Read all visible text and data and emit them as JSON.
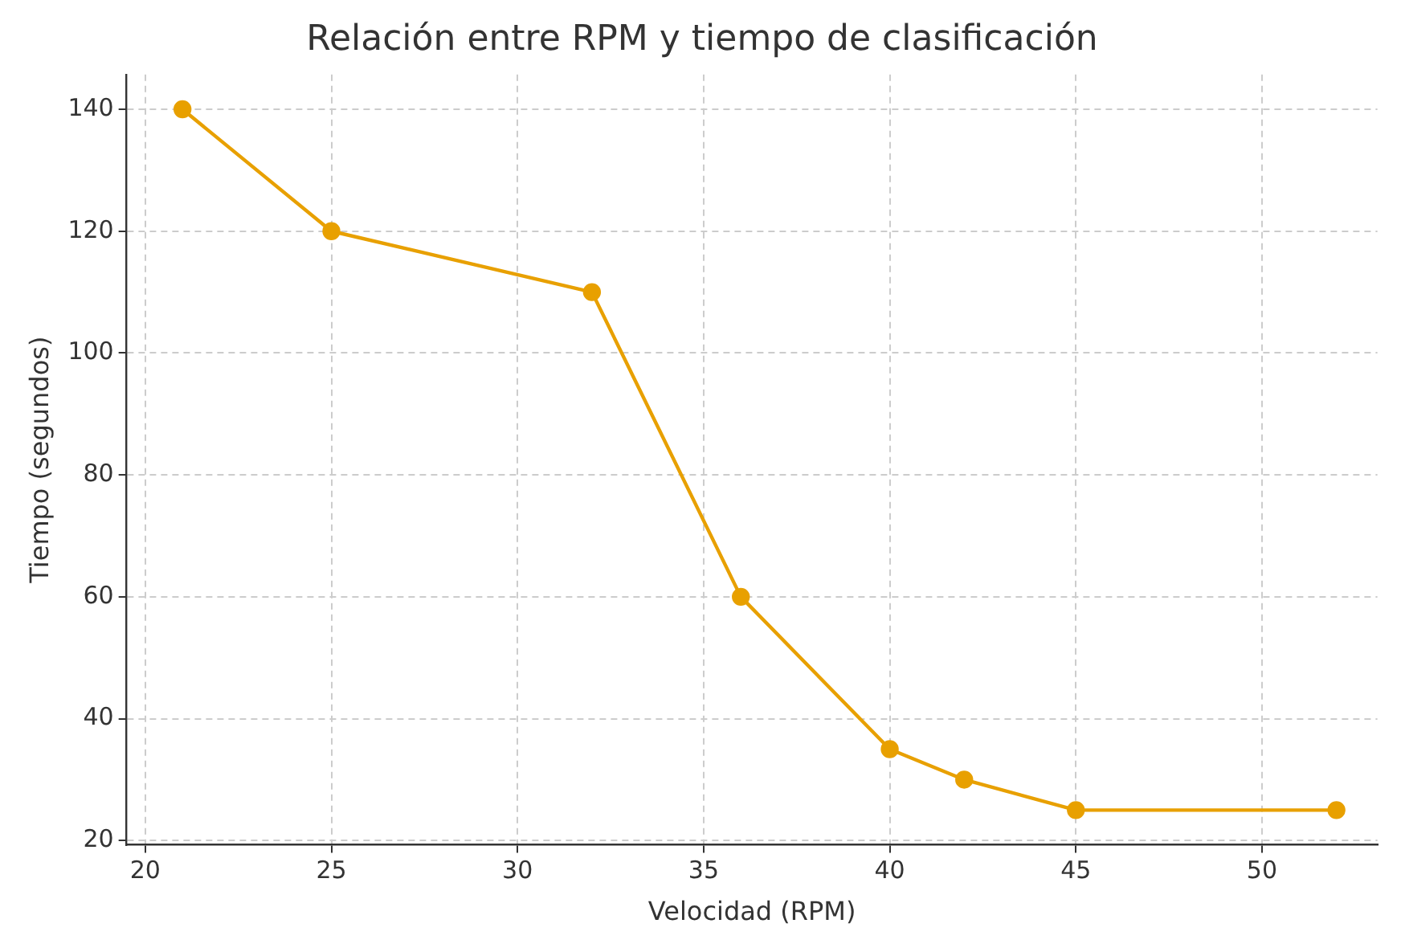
{
  "chart_data": {
    "type": "line",
    "title": "Relación entre RPM y tiempo de clasificación",
    "xlabel": "Velocidad (RPM)",
    "ylabel": "Tiempo (segundos)",
    "x": [
      21,
      25,
      32,
      36,
      40,
      42,
      45,
      52
    ],
    "series": [
      {
        "color": "#e8a000",
        "values": [
          140,
          120,
          110,
          60,
          35,
          30,
          25,
          25
        ]
      }
    ],
    "xlim": [
      19.5,
      53.1
    ],
    "xticks": [
      20,
      25,
      30,
      35,
      40,
      45,
      50
    ],
    "ylim": [
      19.3,
      145.7
    ],
    "yticks": [
      20,
      40,
      60,
      80,
      100,
      120,
      140
    ],
    "grid": true,
    "legend": false,
    "marker": "circle",
    "line_style": "solid"
  }
}
